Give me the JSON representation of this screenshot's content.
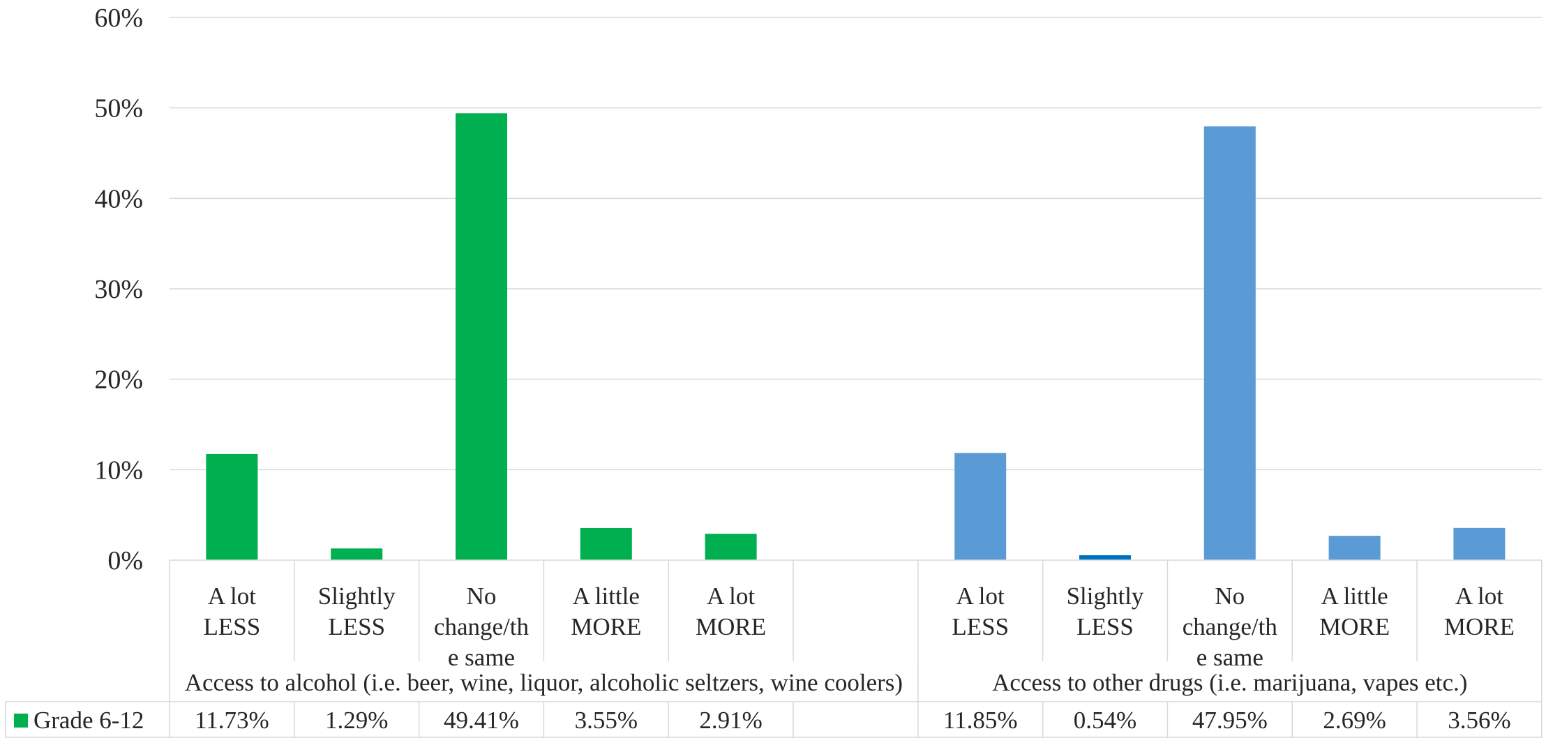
{
  "chart_data": {
    "type": "bar",
    "title": "",
    "xlabel": "",
    "ylabel": "",
    "ylim": [
      0,
      60
    ],
    "yticks": [
      "0%",
      "10%",
      "20%",
      "30%",
      "40%",
      "50%",
      "60%"
    ],
    "grid": true,
    "groups": [
      {
        "label": "Access to alcohol (i.e. beer, wine, liquor, alcoholic seltzers, wine coolers)",
        "categories": [
          [
            "A lot",
            "LESS"
          ],
          [
            "Slightly",
            "LESS"
          ],
          [
            "No",
            "change/th",
            "e same"
          ],
          [
            "A little",
            "MORE"
          ],
          [
            "A lot",
            "MORE"
          ],
          []
        ],
        "values": [
          11.73,
          1.29,
          49.41,
          3.55,
          2.91,
          null
        ],
        "value_labels": [
          "11.73%",
          "1.29%",
          "49.41%",
          "3.55%",
          "2.91%",
          ""
        ],
        "color": "#00B050"
      },
      {
        "label": "Access to other drugs (i.e. marijuana, vapes etc.)",
        "categories": [
          [
            "A lot",
            "LESS"
          ],
          [
            "Slightly",
            "LESS"
          ],
          [
            "No",
            "change/th",
            "e same"
          ],
          [
            "A little",
            "MORE"
          ],
          [
            "A lot",
            "MORE"
          ]
        ],
        "values": [
          11.85,
          0.54,
          47.95,
          2.69,
          3.56
        ],
        "value_labels": [
          "11.85%",
          "0.54%",
          "47.95%",
          "2.69%",
          "3.56%"
        ],
        "color": "#5B9BD5",
        "point_colors": [
          "#5B9BD5",
          "#0070C0",
          "#5B9BD5",
          "#5B9BD5",
          "#5B9BD5"
        ]
      }
    ],
    "series": [
      {
        "name": "Grade  6-12",
        "color": "#00B050"
      }
    ],
    "data_table": true
  }
}
